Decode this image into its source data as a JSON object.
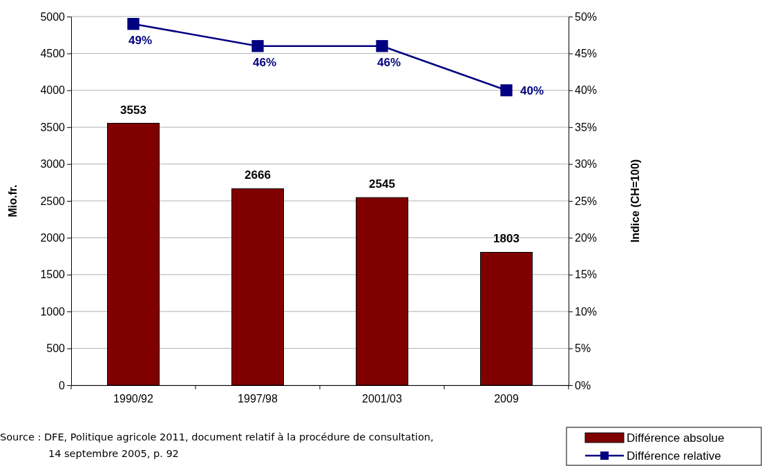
{
  "chart_data": {
    "type": "bar",
    "categories": [
      "1990/92",
      "1997/98",
      "2001/03",
      "2009"
    ],
    "ylabel": "Mio.fr.",
    "y2label": "Indice (CH=100)",
    "ylim": [
      0,
      5000
    ],
    "yticks": [
      0,
      500,
      1000,
      1500,
      2000,
      2500,
      3000,
      3500,
      4000,
      4500,
      5000
    ],
    "y2lim": [
      0,
      50
    ],
    "y2ticks": [
      {
        "value": 0,
        "label": "0%"
      },
      {
        "value": 5,
        "label": "5%"
      },
      {
        "value": 10,
        "label": "10%"
      },
      {
        "value": 15,
        "label": "15%"
      },
      {
        "value": 20,
        "label": "20%"
      },
      {
        "value": 25,
        "label": "25%"
      },
      {
        "value": 30,
        "label": "30%"
      },
      {
        "value": 35,
        "label": "35%"
      },
      {
        "value": 40,
        "label": "40%"
      },
      {
        "value": 45,
        "label": "45%"
      },
      {
        "value": 50,
        "label": "50%"
      }
    ],
    "grid": "y",
    "legend": "bottom right",
    "series": [
      {
        "name": "Différence absolue",
        "color": "#800000",
        "values": [
          3553,
          2666,
          2545,
          1803
        ],
        "value_labels": [
          "3553",
          "2666",
          "2545",
          "1803"
        ]
      },
      {
        "name": "Différence relative",
        "type": "line",
        "axis": "y2",
        "color": "#000080",
        "marker": "square",
        "values": [
          49,
          46,
          46,
          40
        ],
        "value_labels": [
          "49%",
          "46%",
          "46%",
          "40%"
        ]
      }
    ],
    "annotations": [
      "Source : DFE, Politique agricole 2011, document relatif à la procédure de consultation,\n14 septembre 2005, p. 92"
    ]
  }
}
